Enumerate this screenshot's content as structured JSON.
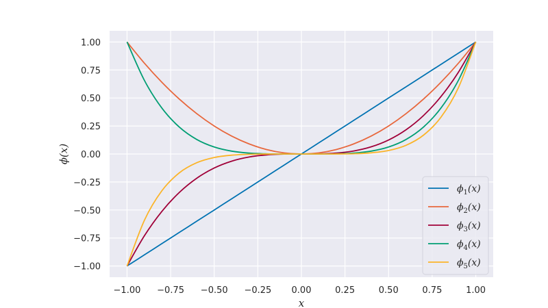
{
  "chart_data": {
    "type": "line",
    "title": "",
    "xlabel": "x",
    "ylabel": "ϕ(x)",
    "xlim": [
      -1.1,
      1.1
    ],
    "ylim": [
      -1.1,
      1.1
    ],
    "xticks": [
      -1.0,
      -0.75,
      -0.5,
      -0.25,
      0.0,
      0.25,
      0.5,
      0.75,
      1.0
    ],
    "yticks": [
      -1.0,
      -0.75,
      -0.5,
      -0.25,
      0.0,
      0.25,
      0.5,
      0.75,
      1.0
    ],
    "xtick_labels": [
      "−1.00",
      "−0.75",
      "−0.50",
      "−0.25",
      "0.00",
      "0.25",
      "0.50",
      "0.75",
      "1.00"
    ],
    "ytick_labels": [
      "−1.00",
      "−0.75",
      "−0.50",
      "−0.25",
      "0.00",
      "0.25",
      "0.50",
      "0.75",
      "1.00"
    ],
    "grid": true,
    "legend_position": "lower-right",
    "background_color": "#eaeaf2",
    "x": [
      -1.0,
      -0.9,
      -0.8,
      -0.7,
      -0.6,
      -0.5,
      -0.4,
      -0.3,
      -0.2,
      -0.1,
      0.0,
      0.1,
      0.2,
      0.3,
      0.4,
      0.5,
      0.6,
      0.7,
      0.8,
      0.9,
      1.0
    ],
    "series": [
      {
        "name": "ϕ₁(x)",
        "base": "ϕ",
        "sub": "1",
        "suffix": "(x)",
        "color": "#0072b2",
        "values": [
          -1.0,
          -0.9,
          -0.8,
          -0.7,
          -0.6,
          -0.5,
          -0.4,
          -0.3,
          -0.2,
          -0.1,
          0.0,
          0.1,
          0.2,
          0.3,
          0.4,
          0.5,
          0.6,
          0.7,
          0.8,
          0.9,
          1.0
        ]
      },
      {
        "name": "ϕ₂(x)",
        "base": "ϕ",
        "sub": "2",
        "suffix": "(x)",
        "color": "#e8673c",
        "values": [
          1.0,
          0.81,
          0.64,
          0.49,
          0.36,
          0.25,
          0.16,
          0.09,
          0.04,
          0.01,
          0.0,
          0.01,
          0.04,
          0.09,
          0.16,
          0.25,
          0.36,
          0.49,
          0.64,
          0.81,
          1.0
        ]
      },
      {
        "name": "ϕ₃(x)",
        "base": "ϕ",
        "sub": "3",
        "suffix": "(x)",
        "color": "#a00038",
        "values": [
          -1.0,
          -0.729,
          -0.512,
          -0.343,
          -0.216,
          -0.125,
          -0.064,
          -0.027,
          -0.008,
          -0.001,
          0.0,
          0.001,
          0.008,
          0.027,
          0.064,
          0.125,
          0.216,
          0.343,
          0.512,
          0.729,
          1.0
        ]
      },
      {
        "name": "ϕ₄(x)",
        "base": "ϕ",
        "sub": "4",
        "suffix": "(x)",
        "color": "#009e73",
        "values": [
          1.0,
          0.6561,
          0.4096,
          0.2401,
          0.1296,
          0.0625,
          0.0256,
          0.0081,
          0.0016,
          0.0001,
          0.0,
          0.0001,
          0.0016,
          0.0081,
          0.0256,
          0.0625,
          0.1296,
          0.2401,
          0.4096,
          0.6561,
          1.0
        ]
      },
      {
        "name": "ϕ₅(x)",
        "base": "ϕ",
        "sub": "5",
        "suffix": "(x)",
        "color": "#fbb428",
        "values": [
          -1.0,
          -0.59049,
          -0.32768,
          -0.16807,
          -0.07776,
          -0.03125,
          -0.01024,
          -0.00243,
          -0.00032,
          -1e-05,
          0.0,
          1e-05,
          0.00032,
          0.00243,
          0.01024,
          0.03125,
          0.07776,
          0.16807,
          0.32768,
          0.59049,
          1.0
        ]
      }
    ]
  }
}
